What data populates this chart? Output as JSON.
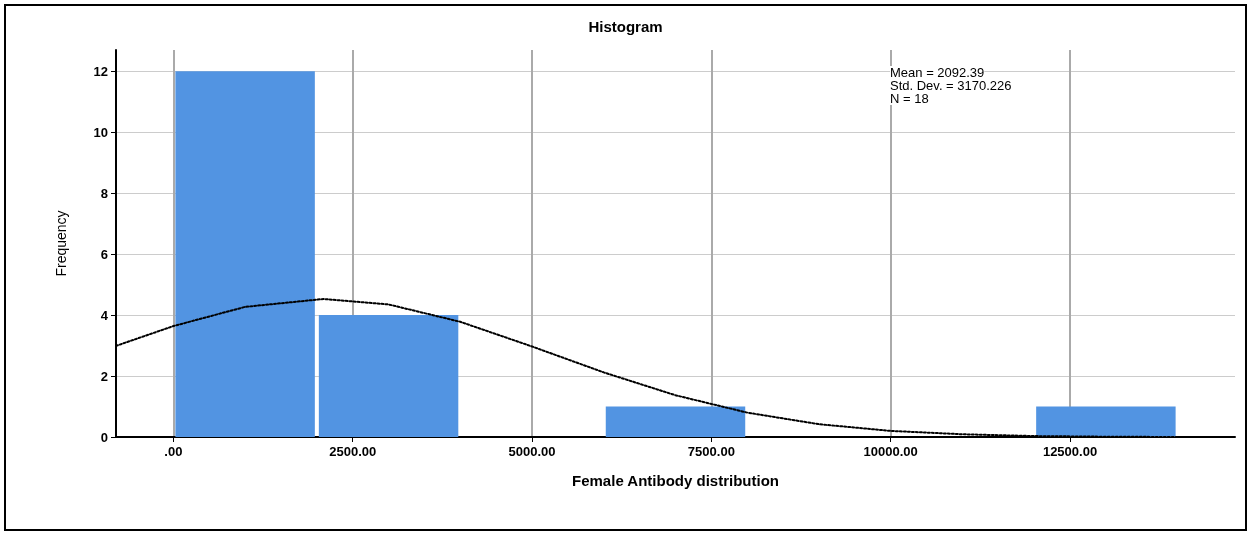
{
  "chart_data": {
    "type": "histogram",
    "title": "Histogram",
    "xlabel": "Female Antibody distribution",
    "ylabel": "Frequency",
    "bins": [
      0,
      2000,
      4000,
      6000,
      8000,
      10000,
      12000,
      14000
    ],
    "values": [
      12,
      4,
      0,
      1,
      0,
      0,
      1
    ],
    "color": "#5294e2",
    "series": [
      {
        "type": "line",
        "color": "#000000",
        "line_style": "dotted",
        "marker": "none",
        "x": [
          -800,
          0,
          1000,
          2092,
          3000,
          4000,
          5000,
          6000,
          7000,
          8000,
          9000,
          10000,
          11000,
          12000,
          13000,
          14000,
          14800
        ],
        "values": [
          2.99,
          3.64,
          4.27,
          4.53,
          4.35,
          3.78,
          2.97,
          2.12,
          1.37,
          0.8,
          0.42,
          0.2,
          0.09,
          0.03,
          0.01,
          0,
          0
        ]
      }
    ],
    "xlim": [
      -800,
      14800
    ],
    "xticks": [
      {
        "value": 0,
        "label": ".00"
      },
      {
        "value": 2500,
        "label": "2500.00"
      },
      {
        "value": 5000,
        "label": "5000.00"
      },
      {
        "value": 7500,
        "label": "7500.00"
      },
      {
        "value": 10000,
        "label": "10000.00"
      },
      {
        "value": 12500,
        "label": "12500.00"
      }
    ],
    "ylim": [
      0,
      12.7
    ],
    "yticks": [
      0,
      2,
      4,
      6,
      8,
      10,
      12
    ],
    "grid": true,
    "annotations": [
      "Mean = 2092.39",
      "Std. Dev. = 3170.226",
      "N = 18"
    ]
  }
}
